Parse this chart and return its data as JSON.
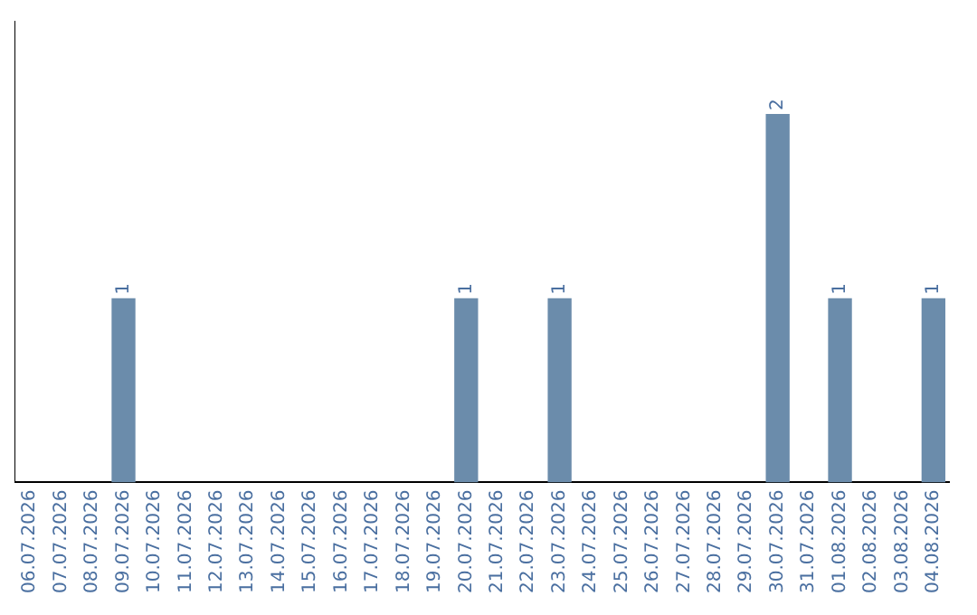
{
  "chart_data": {
    "type": "bar",
    "categories": [
      "06.07.2026",
      "07.07.2026",
      "08.07.2026",
      "09.07.2026",
      "10.07.2026",
      "11.07.2026",
      "12.07.2026",
      "13.07.2026",
      "14.07.2026",
      "15.07.2026",
      "16.07.2026",
      "17.07.2026",
      "18.07.2026",
      "19.07.2026",
      "20.07.2026",
      "21.07.2026",
      "22.07.2026",
      "23.07.2026",
      "24.07.2026",
      "25.07.2026",
      "26.07.2026",
      "27.07.2026",
      "28.07.2026",
      "29.07.2026",
      "30.07.2026",
      "31.07.2026",
      "01.08.2026",
      "02.08.2026",
      "03.08.2026",
      "04.08.2026"
    ],
    "values": [
      0,
      0,
      0,
      1,
      0,
      0,
      0,
      0,
      0,
      0,
      0,
      0,
      0,
      0,
      1,
      0,
      0,
      1,
      0,
      0,
      0,
      0,
      0,
      0,
      2,
      0,
      1,
      0,
      0,
      1
    ],
    "value_labels": [
      null,
      null,
      null,
      "1",
      null,
      null,
      null,
      null,
      null,
      null,
      null,
      null,
      null,
      null,
      "1",
      null,
      null,
      "1",
      null,
      null,
      null,
      null,
      null,
      null,
      "2",
      null,
      "1",
      null,
      null,
      "1"
    ],
    "color": "#6b8cab",
    "grid": false,
    "tick_labels": "x"
  }
}
